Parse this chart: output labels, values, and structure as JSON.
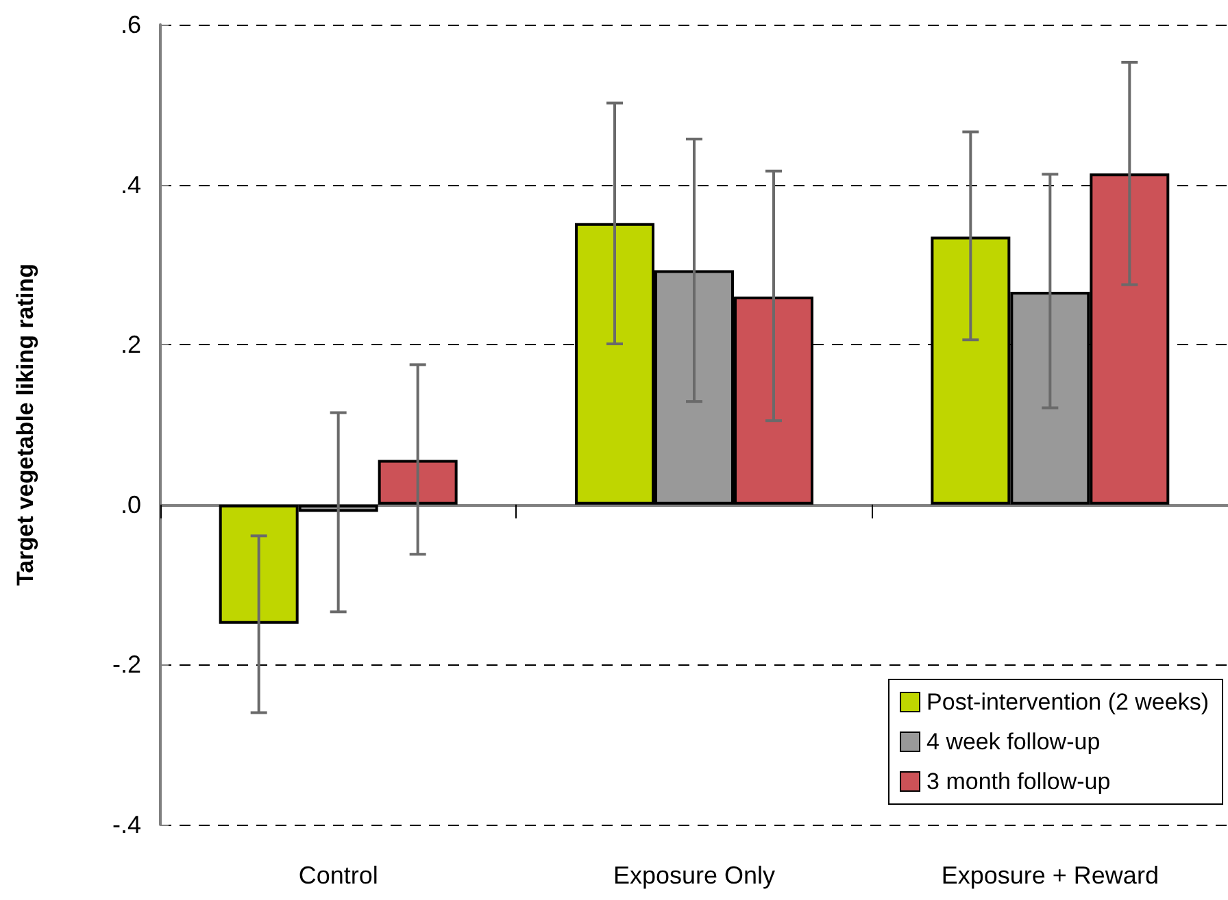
{
  "chart_data": {
    "type": "bar",
    "ylabel": "Target vegetable liking rating",
    "categories": [
      "Control",
      "Exposure Only",
      "Exposure + Reward"
    ],
    "series": [
      {
        "name": "Post-intervention (2 weeks)",
        "color": "#bfd600",
        "values": [
          -0.149,
          0.352,
          0.335
        ],
        "errors": [
          [
            -0.26,
            -0.039
          ],
          [
            0.201,
            0.502
          ],
          [
            0.206,
            0.466
          ]
        ]
      },
      {
        "name": "4 week follow-up",
        "color": "#999999",
        "values": [
          -0.009,
          0.293,
          0.266
        ],
        "errors": [
          [
            -0.134,
            0.115
          ],
          [
            0.129,
            0.457
          ],
          [
            0.121,
            0.413
          ]
        ]
      },
      {
        "name": "3 month follow-up",
        "color": "#cc5257",
        "values": [
          0.056,
          0.26,
          0.414
        ],
        "errors": [
          [
            -0.062,
            0.175
          ],
          [
            0.105,
            0.417
          ],
          [
            0.275,
            0.553
          ]
        ]
      }
    ],
    "ylim": [
      -0.4,
      0.6
    ],
    "yticks": [
      {
        "value": -0.4,
        "label": "-.4"
      },
      {
        "value": -0.2,
        "label": "-.2"
      },
      {
        "value": 0,
        "label": ".0"
      },
      {
        "value": 0.2,
        "label": ".2"
      },
      {
        "value": 0.4,
        "label": ".4"
      },
      {
        "value": 0.6,
        "label": ".6"
      }
    ],
    "grid": "y",
    "legend": "bottom right"
  }
}
